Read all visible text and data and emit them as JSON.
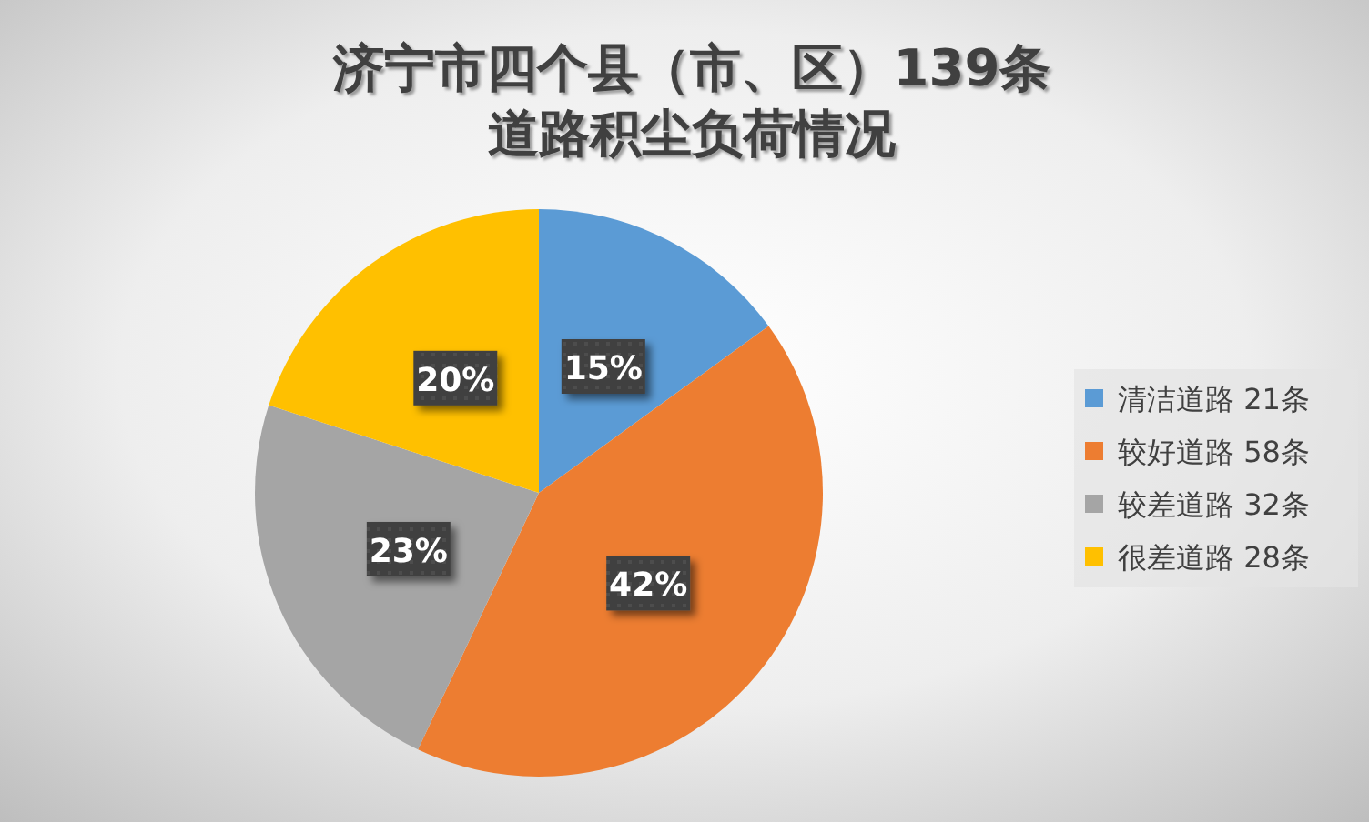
{
  "chart_data": {
    "type": "pie",
    "title": "济宁市四个县（市、区）139条道路积尘负荷情况",
    "categories": [
      "清洁道路 21条",
      "较好道路 58条",
      "较差道路 32条",
      "很差道路 28条"
    ],
    "values": [
      15,
      42,
      23,
      20
    ],
    "colors": [
      "#5b9bd5",
      "#ed7d31",
      "#a5a5a5",
      "#ffc000"
    ],
    "value_labels": [
      "15%",
      "42%",
      "23%",
      "20%"
    ],
    "legend": "right"
  }
}
